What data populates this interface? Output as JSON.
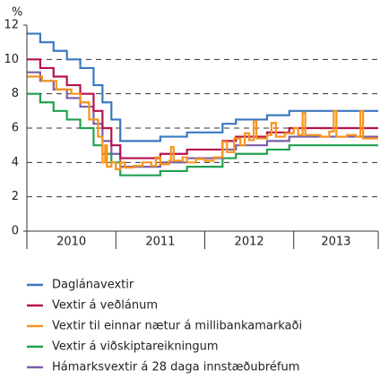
{
  "chart_data": {
    "type": "step",
    "y_unit_label": "%",
    "xlim": [
      2010,
      2013.95
    ],
    "xticks": [
      2010,
      2011,
      2012,
      2013
    ],
    "ylim": [
      0,
      12
    ],
    "yticks": [
      0,
      2,
      4,
      6,
      8,
      10,
      12
    ],
    "grid": true,
    "series": [
      {
        "name": "Daglánavextir",
        "color": "#3a78c0",
        "x": [
          2010.0,
          2010.15,
          2010.3,
          2010.45,
          2010.6,
          2010.75,
          2010.85,
          2010.95,
          2011.05,
          2011.5,
          2011.8,
          2012.2,
          2012.35,
          2012.7,
          2012.95
        ],
        "values": [
          11.5,
          11.0,
          10.5,
          10.0,
          9.5,
          8.5,
          7.5,
          6.5,
          5.25,
          5.5,
          5.75,
          6.25,
          6.5,
          6.75,
          7.0
        ]
      },
      {
        "name": "Vextir á veðlánum",
        "color": "#b5124f",
        "x": [
          2010.0,
          2010.15,
          2010.3,
          2010.45,
          2010.6,
          2010.75,
          2010.85,
          2010.95,
          2011.05,
          2011.5,
          2011.8,
          2012.2,
          2012.35,
          2012.7,
          2012.95
        ],
        "values": [
          10.0,
          9.5,
          9.0,
          8.5,
          8.0,
          7.0,
          6.0,
          5.0,
          4.25,
          4.5,
          4.75,
          5.25,
          5.5,
          5.75,
          6.0
        ]
      },
      {
        "name": "Vextir til einnar nætur á millibankamarkaði",
        "color": "#f7941d",
        "x": [
          2010.0,
          2010.17,
          2010.33,
          2010.5,
          2010.6,
          2010.7,
          2010.8,
          2010.85,
          2010.88,
          2010.9,
          2010.95,
          2011.0,
          2011.05,
          2011.1,
          2011.2,
          2011.3,
          2011.4,
          2011.45,
          2011.5,
          2011.6,
          2011.62,
          2011.65,
          2011.75,
          2011.8,
          2011.9,
          2012.0,
          2012.1,
          2012.2,
          2012.25,
          2012.33,
          2012.4,
          2012.45,
          2012.5,
          2012.55,
          2012.58,
          2012.7,
          2012.75,
          2012.8,
          2012.9,
          2013.0,
          2013.05,
          2013.1,
          2013.13,
          2013.3,
          2013.4,
          2013.45,
          2013.48,
          2013.6,
          2013.7,
          2013.75,
          2013.78,
          2013.9
        ],
        "values": [
          9.0,
          8.75,
          8.25,
          8.0,
          7.5,
          6.5,
          5.5,
          4.0,
          5.0,
          3.75,
          4.0,
          3.6,
          4.0,
          3.7,
          3.8,
          4.0,
          3.8,
          4.3,
          3.9,
          4.1,
          4.9,
          4.1,
          4.3,
          4.0,
          4.2,
          4.1,
          4.3,
          5.2,
          4.6,
          5.4,
          5.0,
          5.7,
          5.3,
          6.4,
          5.4,
          5.6,
          6.3,
          5.5,
          5.7,
          6.0,
          5.6,
          6.9,
          5.6,
          5.5,
          5.8,
          7.0,
          5.5,
          5.6,
          5.5,
          7.0,
          5.4,
          5.4
        ]
      },
      {
        "name": "Vextir á viðskiptareikningum",
        "color": "#21a150",
        "x": [
          2010.0,
          2010.15,
          2010.3,
          2010.45,
          2010.6,
          2010.75,
          2010.85,
          2010.95,
          2011.05,
          2011.5,
          2011.8,
          2012.2,
          2012.35,
          2012.7,
          2012.95
        ],
        "values": [
          8.0,
          7.5,
          7.0,
          6.5,
          6.0,
          5.0,
          4.5,
          4.0,
          3.25,
          3.5,
          3.75,
          4.25,
          4.5,
          4.75,
          5.0
        ]
      },
      {
        "name": "Hámarksvextir á 28 daga innstæðubréfum",
        "color": "#7b5ea7",
        "x": [
          2010.0,
          2010.15,
          2010.3,
          2010.45,
          2010.6,
          2010.75,
          2010.85,
          2010.95,
          2011.05,
          2011.5,
          2011.8,
          2012.2,
          2012.35,
          2012.7,
          2012.95
        ],
        "values": [
          9.25,
          8.75,
          8.25,
          7.75,
          7.25,
          6.25,
          5.25,
          4.5,
          3.75,
          4.0,
          4.25,
          4.75,
          5.0,
          5.25,
          5.5
        ]
      }
    ]
  }
}
